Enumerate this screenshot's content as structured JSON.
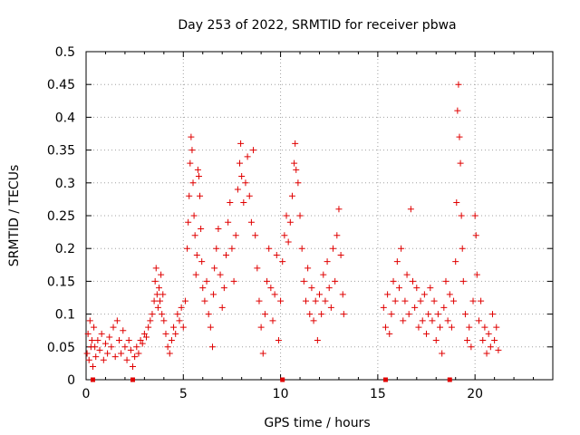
{
  "chart_data": {
    "type": "scatter",
    "title": "Day 253 of 2022, SRMTID for receiver pbwa",
    "xlabel": "GPS time / hours",
    "ylabel": "SRMTID / TECUs",
    "xlim": [
      0,
      24
    ],
    "ylim": [
      0,
      0.5
    ],
    "xticks": [
      0,
      5,
      10,
      15,
      20
    ],
    "xtick_labels": [
      "0",
      "5",
      "10",
      "15",
      "20"
    ],
    "yticks": [
      0,
      0.05,
      0.1,
      0.15,
      0.2,
      0.25,
      0.3,
      0.35,
      0.4,
      0.45,
      0.5
    ],
    "ytick_labels": [
      "0",
      "0.05",
      "0.1",
      "0.15",
      "0.2",
      "0.25",
      "0.3",
      "0.35",
      "0.4",
      "0.45",
      "0.5"
    ],
    "grid": true,
    "marker": "+",
    "color": "#e00000",
    "series": [
      {
        "name": "SRMTID",
        "points": [
          [
            0.05,
            0.04
          ],
          [
            0.1,
            0.07
          ],
          [
            0.15,
            0.03
          ],
          [
            0.2,
            0.09
          ],
          [
            0.25,
            0.05
          ],
          [
            0.3,
            0.06
          ],
          [
            0.35,
            0.02
          ],
          [
            0.4,
            0.08
          ],
          [
            0.45,
            0.05
          ],
          [
            0.5,
            0.035
          ],
          [
            0.6,
            0.06
          ],
          [
            0.7,
            0.045
          ],
          [
            0.8,
            0.07
          ],
          [
            0.9,
            0.03
          ],
          [
            1.0,
            0.055
          ],
          [
            1.1,
            0.04
          ],
          [
            1.2,
            0.065
          ],
          [
            1.3,
            0.05
          ],
          [
            1.4,
            0.08
          ],
          [
            1.5,
            0.035
          ],
          [
            1.6,
            0.09
          ],
          [
            1.7,
            0.06
          ],
          [
            1.8,
            0.04
          ],
          [
            1.9,
            0.075
          ],
          [
            2.0,
            0.05
          ],
          [
            2.1,
            0.03
          ],
          [
            2.2,
            0.06
          ],
          [
            2.3,
            0.045
          ],
          [
            2.4,
            0.02
          ],
          [
            2.5,
            0.035
          ],
          [
            2.6,
            0.05
          ],
          [
            2.7,
            0.04
          ],
          [
            2.8,
            0.06
          ],
          [
            2.9,
            0.055
          ],
          [
            3.0,
            0.07
          ],
          [
            3.1,
            0.065
          ],
          [
            3.2,
            0.08
          ],
          [
            3.3,
            0.09
          ],
          [
            3.4,
            0.1
          ],
          [
            3.5,
            0.12
          ],
          [
            3.55,
            0.15
          ],
          [
            3.6,
            0.17
          ],
          [
            3.65,
            0.13
          ],
          [
            3.7,
            0.11
          ],
          [
            3.75,
            0.14
          ],
          [
            3.8,
            0.12
          ],
          [
            3.85,
            0.16
          ],
          [
            3.9,
            0.1
          ],
          [
            3.95,
            0.13
          ],
          [
            4.0,
            0.09
          ],
          [
            4.1,
            0.07
          ],
          [
            4.2,
            0.05
          ],
          [
            4.3,
            0.04
          ],
          [
            4.4,
            0.06
          ],
          [
            4.5,
            0.08
          ],
          [
            4.6,
            0.07
          ],
          [
            4.7,
            0.1
          ],
          [
            4.8,
            0.09
          ],
          [
            4.9,
            0.11
          ],
          [
            5.0,
            0.08
          ],
          [
            5.1,
            0.12
          ],
          [
            5.2,
            0.2
          ],
          [
            5.25,
            0.24
          ],
          [
            5.3,
            0.28
          ],
          [
            5.35,
            0.33
          ],
          [
            5.4,
            0.37
          ],
          [
            5.45,
            0.35
          ],
          [
            5.5,
            0.3
          ],
          [
            5.55,
            0.25
          ],
          [
            5.6,
            0.22
          ],
          [
            5.65,
            0.16
          ],
          [
            5.7,
            0.19
          ],
          [
            5.75,
            0.32
          ],
          [
            5.8,
            0.31
          ],
          [
            5.85,
            0.28
          ],
          [
            5.9,
            0.23
          ],
          [
            5.95,
            0.18
          ],
          [
            6.0,
            0.14
          ],
          [
            6.1,
            0.12
          ],
          [
            6.2,
            0.15
          ],
          [
            6.3,
            0.1
          ],
          [
            6.4,
            0.08
          ],
          [
            6.5,
            0.05
          ],
          [
            6.55,
            0.13
          ],
          [
            6.6,
            0.17
          ],
          [
            6.7,
            0.2
          ],
          [
            6.8,
            0.23
          ],
          [
            6.9,
            0.16
          ],
          [
            7.0,
            0.11
          ],
          [
            7.1,
            0.14
          ],
          [
            7.2,
            0.19
          ],
          [
            7.3,
            0.24
          ],
          [
            7.4,
            0.27
          ],
          [
            7.5,
            0.2
          ],
          [
            7.6,
            0.15
          ],
          [
            7.7,
            0.22
          ],
          [
            7.8,
            0.29
          ],
          [
            7.9,
            0.33
          ],
          [
            7.95,
            0.36
          ],
          [
            8.0,
            0.31
          ],
          [
            8.1,
            0.27
          ],
          [
            8.2,
            0.3
          ],
          [
            8.3,
            0.34
          ],
          [
            8.4,
            0.28
          ],
          [
            8.5,
            0.24
          ],
          [
            8.6,
            0.35
          ],
          [
            8.7,
            0.22
          ],
          [
            8.8,
            0.17
          ],
          [
            8.9,
            0.12
          ],
          [
            9.0,
            0.08
          ],
          [
            9.1,
            0.04
          ],
          [
            9.2,
            0.1
          ],
          [
            9.3,
            0.15
          ],
          [
            9.4,
            0.2
          ],
          [
            9.5,
            0.14
          ],
          [
            9.6,
            0.09
          ],
          [
            9.7,
            0.13
          ],
          [
            9.8,
            0.19
          ],
          [
            9.9,
            0.06
          ],
          [
            10.0,
            0.12
          ],
          [
            10.1,
            0.18
          ],
          [
            10.2,
            0.22
          ],
          [
            10.3,
            0.25
          ],
          [
            10.4,
            0.21
          ],
          [
            10.5,
            0.24
          ],
          [
            10.6,
            0.28
          ],
          [
            10.7,
            0.33
          ],
          [
            10.75,
            0.36
          ],
          [
            10.8,
            0.32
          ],
          [
            10.9,
            0.3
          ],
          [
            11.0,
            0.25
          ],
          [
            11.1,
            0.2
          ],
          [
            11.2,
            0.15
          ],
          [
            11.3,
            0.12
          ],
          [
            11.4,
            0.17
          ],
          [
            11.5,
            0.1
          ],
          [
            11.6,
            0.14
          ],
          [
            11.7,
            0.09
          ],
          [
            11.8,
            0.12
          ],
          [
            11.9,
            0.06
          ],
          [
            12.0,
            0.13
          ],
          [
            12.1,
            0.1
          ],
          [
            12.2,
            0.16
          ],
          [
            12.3,
            0.12
          ],
          [
            12.4,
            0.18
          ],
          [
            12.5,
            0.14
          ],
          [
            12.6,
            0.11
          ],
          [
            12.7,
            0.2
          ],
          [
            12.8,
            0.15
          ],
          [
            12.9,
            0.22
          ],
          [
            13.0,
            0.26
          ],
          [
            13.1,
            0.19
          ],
          [
            13.2,
            0.13
          ],
          [
            13.25,
            0.1
          ],
          [
            15.3,
            0.11
          ],
          [
            15.4,
            0.08
          ],
          [
            15.5,
            0.13
          ],
          [
            15.6,
            0.07
          ],
          [
            15.7,
            0.1
          ],
          [
            15.8,
            0.15
          ],
          [
            15.9,
            0.12
          ],
          [
            16.0,
            0.18
          ],
          [
            16.1,
            0.14
          ],
          [
            16.2,
            0.2
          ],
          [
            16.3,
            0.09
          ],
          [
            16.4,
            0.12
          ],
          [
            16.5,
            0.16
          ],
          [
            16.6,
            0.1
          ],
          [
            16.7,
            0.26
          ],
          [
            16.8,
            0.15
          ],
          [
            16.9,
            0.11
          ],
          [
            17.0,
            0.14
          ],
          [
            17.1,
            0.08
          ],
          [
            17.2,
            0.12
          ],
          [
            17.3,
            0.09
          ],
          [
            17.4,
            0.13
          ],
          [
            17.5,
            0.07
          ],
          [
            17.6,
            0.1
          ],
          [
            17.7,
            0.14
          ],
          [
            17.8,
            0.09
          ],
          [
            17.9,
            0.12
          ],
          [
            18.0,
            0.06
          ],
          [
            18.1,
            0.1
          ],
          [
            18.2,
            0.08
          ],
          [
            18.3,
            0.04
          ],
          [
            18.4,
            0.11
          ],
          [
            18.5,
            0.15
          ],
          [
            18.6,
            0.09
          ],
          [
            18.7,
            0.13
          ],
          [
            18.8,
            0.08
          ],
          [
            18.9,
            0.12
          ],
          [
            19.0,
            0.18
          ],
          [
            19.05,
            0.27
          ],
          [
            19.1,
            0.41
          ],
          [
            19.15,
            0.45
          ],
          [
            19.2,
            0.37
          ],
          [
            19.25,
            0.33
          ],
          [
            19.3,
            0.25
          ],
          [
            19.35,
            0.2
          ],
          [
            19.4,
            0.15
          ],
          [
            19.5,
            0.1
          ],
          [
            19.6,
            0.06
          ],
          [
            19.7,
            0.08
          ],
          [
            19.8,
            0.05
          ],
          [
            19.9,
            0.12
          ],
          [
            20.0,
            0.25
          ],
          [
            20.05,
            0.22
          ],
          [
            20.1,
            0.16
          ],
          [
            20.2,
            0.09
          ],
          [
            20.3,
            0.12
          ],
          [
            20.4,
            0.06
          ],
          [
            20.5,
            0.08
          ],
          [
            20.6,
            0.04
          ],
          [
            20.7,
            0.07
          ],
          [
            20.8,
            0.05
          ],
          [
            20.9,
            0.1
          ],
          [
            21.0,
            0.06
          ],
          [
            21.1,
            0.08
          ],
          [
            21.2,
            0.045
          ]
        ]
      }
    ],
    "baseline_markers_x": [
      0.35,
      2.4,
      10.1,
      15.4,
      18.7
    ]
  }
}
